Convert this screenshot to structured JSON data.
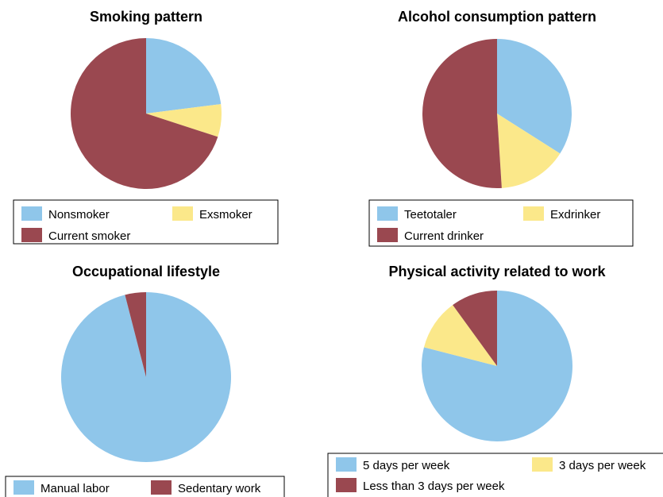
{
  "chart_data": [
    {
      "type": "pie",
      "title": "Smoking pattern",
      "categories": [
        "Nonsmoker",
        "Exsmoker",
        "Current smoker"
      ],
      "values": [
        23,
        7,
        70
      ],
      "colors": [
        "#8fc6ea",
        "#fbe88a",
        "#9a4850"
      ]
    },
    {
      "type": "pie",
      "title": "Alcohol consumption pattern",
      "categories": [
        "Teetotaler",
        "Exdrinker",
        "Current drinker"
      ],
      "values": [
        34,
        15,
        51
      ],
      "colors": [
        "#8fc6ea",
        "#fbe88a",
        "#9a4850"
      ]
    },
    {
      "type": "pie",
      "title": "Occupational lifestyle",
      "categories": [
        "Manual labor",
        "Sedentary work"
      ],
      "values": [
        96,
        4
      ],
      "colors": [
        "#8fc6ea",
        "#9a4850"
      ]
    },
    {
      "type": "pie",
      "title": "Physical activity related to work",
      "categories": [
        "5 days per week",
        "3 days per week",
        "Less than 3 days per week"
      ],
      "values": [
        79,
        11,
        10
      ],
      "colors": [
        "#8fc6ea",
        "#fbe88a",
        "#9a4850"
      ]
    }
  ]
}
